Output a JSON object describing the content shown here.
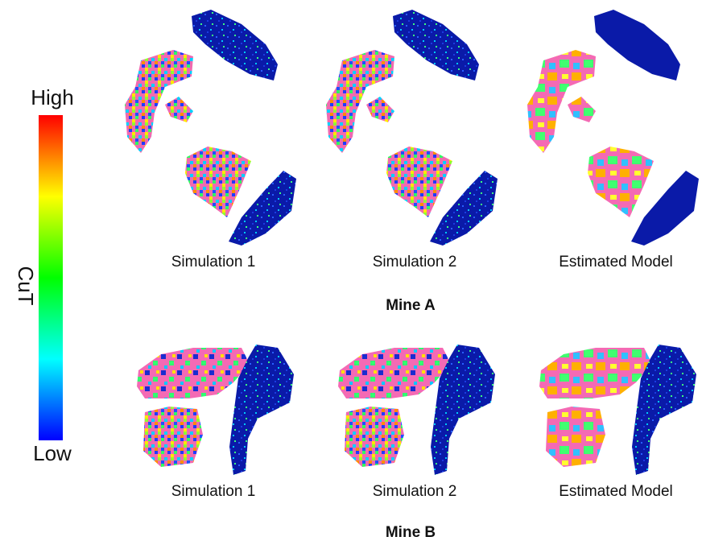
{
  "colorbar": {
    "title": "CuT",
    "high": "High",
    "low": "Low"
  },
  "sections": [
    {
      "title": "Mine A",
      "panels": [
        "Simulation 1",
        "Simulation 2",
        "Estimated Model"
      ]
    },
    {
      "title": "Mine B",
      "panels": [
        "Simulation 1",
        "Simulation 2",
        "Estimated Model"
      ]
    }
  ]
}
